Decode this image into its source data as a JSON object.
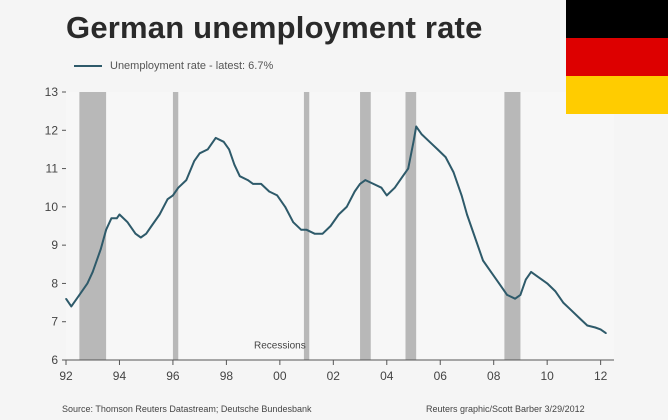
{
  "chart_data": {
    "type": "line",
    "title": "German unemployment rate",
    "legend": "Unemployment rate - latest: 6.7%",
    "legend_position": "top-left",
    "ylim": [
      6,
      13
    ],
    "y_ticks": [
      "6",
      "7",
      "8",
      "9",
      "10",
      "11",
      "12",
      "13"
    ],
    "xlim": [
      1992,
      2012.5
    ],
    "x_tick_values": [
      1992,
      1994,
      1996,
      1998,
      2000,
      2002,
      2004,
      2006,
      2008,
      2010,
      2012
    ],
    "x_ticks": [
      "92",
      "94",
      "96",
      "98",
      "00",
      "02",
      "04",
      "06",
      "08",
      "10",
      "12"
    ],
    "grid": false,
    "series": [
      {
        "color": "#2e5a6a",
        "x": [
          1992.0,
          1992.2,
          1992.5,
          1992.8,
          1993.0,
          1993.3,
          1993.5,
          1993.7,
          1993.9,
          1994.0,
          1994.3,
          1994.6,
          1994.8,
          1995.0,
          1995.2,
          1995.5,
          1995.8,
          1996.0,
          1996.2,
          1996.5,
          1996.8,
          1997.0,
          1997.3,
          1997.6,
          1997.9,
          1998.1,
          1998.3,
          1998.5,
          1998.8,
          1999.0,
          1999.3,
          1999.6,
          1999.9,
          2000.2,
          2000.5,
          2000.8,
          2001.0,
          2001.3,
          2001.6,
          2001.9,
          2002.2,
          2002.5,
          2002.8,
          2003.0,
          2003.2,
          2003.5,
          2003.8,
          2004.0,
          2004.3,
          2004.6,
          2004.8,
          2005.0,
          2005.1,
          2005.3,
          2005.6,
          2005.9,
          2006.2,
          2006.5,
          2006.8,
          2007.0,
          2007.3,
          2007.6,
          2007.9,
          2008.2,
          2008.5,
          2008.8,
          2009.0,
          2009.2,
          2009.4,
          2009.6,
          2009.8,
          2010.0,
          2010.3,
          2010.6,
          2010.9,
          2011.2,
          2011.5,
          2011.8,
          2012.0,
          2012.2
        ],
        "values": [
          7.6,
          7.4,
          7.7,
          8.0,
          8.3,
          8.9,
          9.4,
          9.7,
          9.7,
          9.8,
          9.6,
          9.3,
          9.2,
          9.3,
          9.5,
          9.8,
          10.2,
          10.3,
          10.5,
          10.7,
          11.2,
          11.4,
          11.5,
          11.8,
          11.7,
          11.5,
          11.1,
          10.8,
          10.7,
          10.6,
          10.6,
          10.4,
          10.3,
          10.0,
          9.6,
          9.4,
          9.4,
          9.3,
          9.3,
          9.5,
          9.8,
          10.0,
          10.4,
          10.6,
          10.7,
          10.6,
          10.5,
          10.3,
          10.5,
          10.8,
          11.0,
          11.7,
          12.1,
          11.9,
          11.7,
          11.5,
          11.3,
          10.9,
          10.3,
          9.8,
          9.2,
          8.6,
          8.3,
          8.0,
          7.7,
          7.6,
          7.7,
          8.1,
          8.3,
          8.2,
          8.1,
          8.0,
          7.8,
          7.5,
          7.3,
          7.1,
          6.9,
          6.85,
          6.8,
          6.7
        ]
      }
    ],
    "recessions": [
      {
        "start": 1992.5,
        "end": 1993.5
      },
      {
        "start": 1996.0,
        "end": 1996.2
      },
      {
        "start": 2000.9,
        "end": 2001.1
      },
      {
        "start": 2003.0,
        "end": 2003.4
      },
      {
        "start": 2004.7,
        "end": 2005.1
      },
      {
        "start": 2008.4,
        "end": 2009.0
      }
    ],
    "recession_label": "Recessions",
    "recession_label_x": 2000.0,
    "recession_label_y": 6.4,
    "source": "Source: Thomson Reuters Datastream; Deutsche Bundesbank",
    "credit": "Reuters graphic/Scott Barber 3/29/2012"
  },
  "colors": {
    "line": "#2e5a6a",
    "recession": "#b8b8b8",
    "axis": "#555555",
    "flag_black": "#000000",
    "flag_red": "#dd0000",
    "flag_gold": "#ffcc00"
  }
}
